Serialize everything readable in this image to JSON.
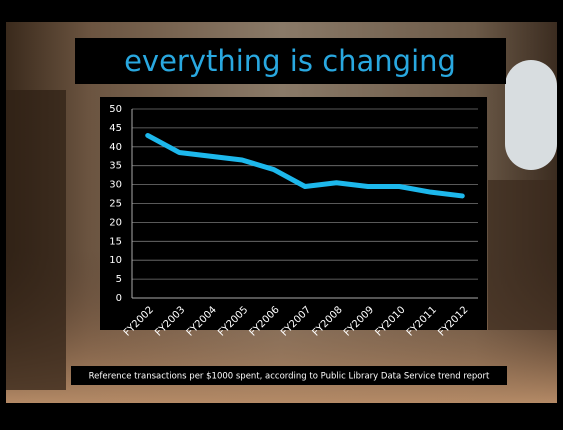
{
  "chart_data": {
    "type": "line",
    "title": "everything is changing",
    "caption": "Reference transactions per $1000 spent, according to Public Library Data Service trend report",
    "categories": [
      "FY2002",
      "FY2003",
      "FY2004",
      "FY2005",
      "FY2006",
      "FY2007",
      "FY2008",
      "FY2009",
      "FY2010",
      "FY2011",
      "FY2012"
    ],
    "values": [
      43,
      38.5,
      37.5,
      36.5,
      34,
      29.5,
      30.5,
      29.5,
      29.5,
      28,
      27
    ],
    "color": "#1db8ec",
    "ylim": [
      0,
      50
    ],
    "yticks": [
      0,
      5,
      10,
      15,
      20,
      25,
      30,
      35,
      40,
      45,
      50
    ],
    "grid": true
  }
}
